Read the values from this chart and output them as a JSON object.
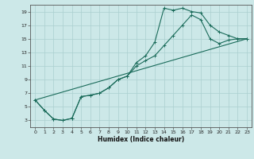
{
  "xlabel": "Humidex (Indice chaleur)",
  "bg_color": "#cce8e8",
  "line_color": "#1a6b5a",
  "grid_color": "#aacfcf",
  "xlim": [
    -0.5,
    23.5
  ],
  "ylim": [
    2,
    20
  ],
  "xticks": [
    0,
    1,
    2,
    3,
    4,
    5,
    6,
    7,
    8,
    9,
    10,
    11,
    12,
    13,
    14,
    15,
    16,
    17,
    18,
    19,
    20,
    21,
    22,
    23
  ],
  "yticks": [
    3,
    5,
    7,
    9,
    11,
    13,
    15,
    17,
    19
  ],
  "line1_x": [
    0,
    1,
    2,
    3,
    4,
    5,
    6,
    7,
    8,
    9,
    10,
    11,
    12,
    13,
    14,
    15,
    16,
    17,
    18,
    19,
    20,
    21,
    22,
    23
  ],
  "line1_y": [
    6.0,
    4.5,
    3.2,
    3.0,
    3.3,
    6.5,
    6.7,
    7.0,
    7.8,
    9.0,
    9.5,
    11.5,
    12.5,
    14.5,
    19.5,
    19.2,
    19.5,
    19.0,
    18.8,
    17.0,
    16.0,
    15.5,
    15.0,
    15.0
  ],
  "line2_x": [
    0,
    1,
    2,
    3,
    4,
    5,
    6,
    7,
    8,
    9,
    10,
    11,
    12,
    13,
    14,
    15,
    16,
    17,
    18,
    19,
    20,
    21,
    22,
    23
  ],
  "line2_y": [
    6.0,
    4.5,
    3.2,
    3.0,
    3.3,
    6.5,
    6.7,
    7.0,
    7.8,
    9.0,
    9.5,
    11.0,
    11.8,
    12.5,
    14.0,
    15.5,
    17.0,
    18.5,
    17.8,
    15.0,
    14.3,
    14.8,
    15.0,
    15.0
  ],
  "line3_x": [
    0,
    23
  ],
  "line3_y": [
    6.0,
    15.0
  ]
}
